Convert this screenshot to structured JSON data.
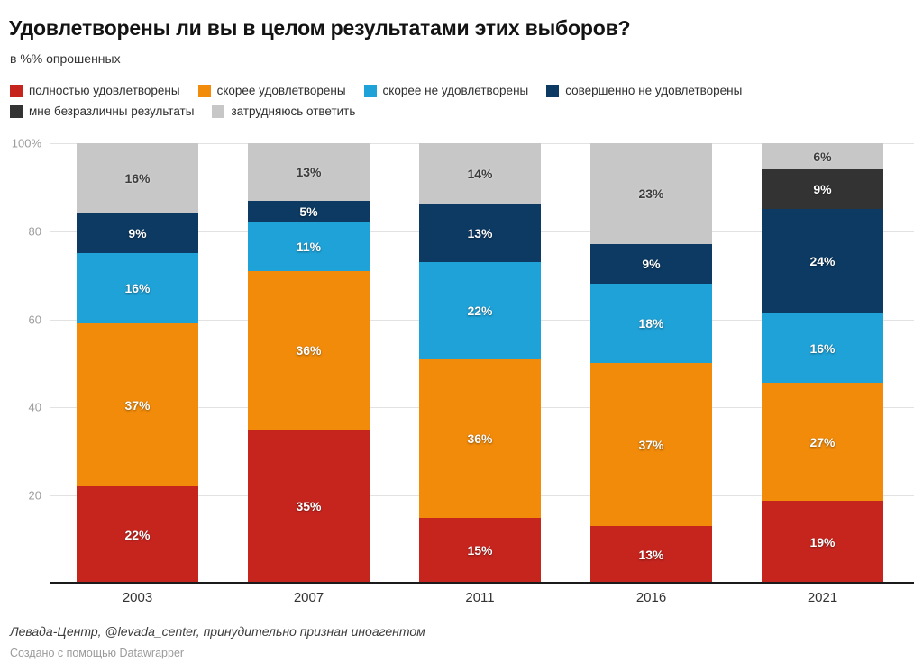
{
  "title": "Удовлетворены ли вы в целом результатами этих выборов?",
  "subtitle": "в %% опрошенных",
  "chart_data": {
    "type": "bar",
    "stacked": true,
    "orientation": "vertical",
    "categories": [
      "2003",
      "2007",
      "2011",
      "2016",
      "2021"
    ],
    "series": [
      {
        "name": "полностью удовлетворены",
        "color": "#c6251e",
        "label_color": "#ffffff",
        "values": [
          22,
          35,
          15,
          13,
          19
        ]
      },
      {
        "name": "скорее удовлетворены",
        "color": "#f28b0a",
        "label_color": "#ffffff",
        "values": [
          37,
          36,
          36,
          37,
          27
        ]
      },
      {
        "name": "скорее не удовлетворены",
        "color": "#1fa2d8",
        "label_color": "#ffffff",
        "values": [
          16,
          11,
          22,
          18,
          16
        ]
      },
      {
        "name": "совершенно не удовлетворены",
        "color": "#0c3a63",
        "label_color": "#ffffff",
        "values": [
          9,
          5,
          13,
          9,
          24
        ]
      },
      {
        "name": "мне безразличны результаты",
        "color": "#333333",
        "label_color": "#ffffff",
        "values": [
          null,
          null,
          null,
          null,
          9
        ]
      },
      {
        "name": "затрудняюсь ответить",
        "color": "#c7c7c7",
        "label_color": "#3d3d3d",
        "values": [
          16,
          13,
          14,
          23,
          6
        ]
      }
    ],
    "value_suffix": "%",
    "yticks": [
      {
        "v": 100,
        "label": "100%"
      },
      {
        "v": 80,
        "label": "80"
      },
      {
        "v": 60,
        "label": "60"
      },
      {
        "v": 40,
        "label": "40"
      },
      {
        "v": 20,
        "label": "20"
      }
    ],
    "ylim": [
      0,
      100
    ],
    "grid": true,
    "legend_position": "top",
    "colors": {
      "gridline": "#e2e2e2",
      "baseline": "#1b1b1b",
      "axis_label": "#9d9d9d"
    }
  },
  "footer": {
    "source": "Левада-Центр, @levada_center, принудительно признан иноагентом",
    "attribution": "Создано с помощью Datawrapper"
  }
}
